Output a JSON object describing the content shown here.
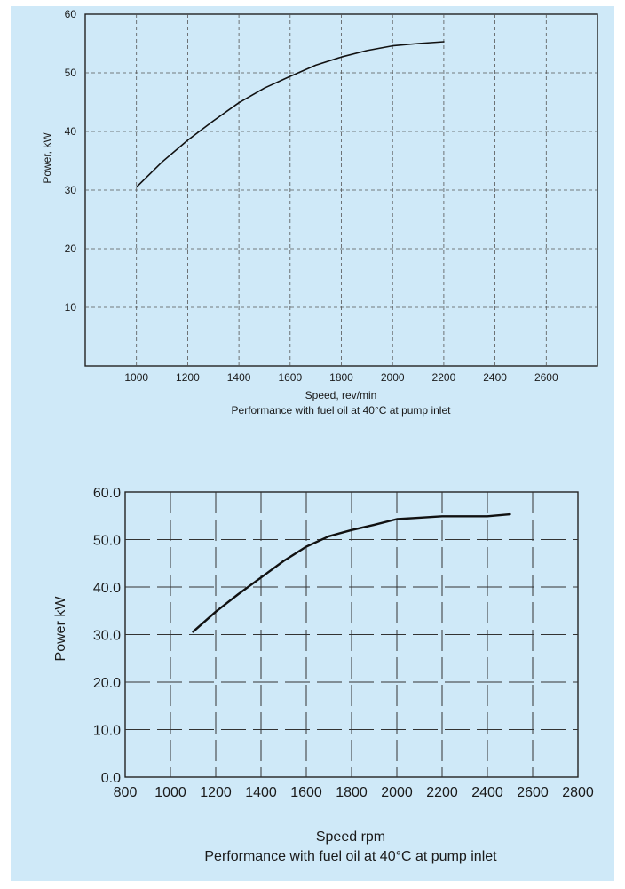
{
  "chart_data": [
    {
      "type": "line",
      "xlabel": "Speed, rev/min",
      "ylabel": "Power, kW",
      "caption": "Performance with fuel oil at 40°C at pump inlet",
      "xlim": [
        800,
        2800
      ],
      "ylim": [
        0,
        60
      ],
      "xticks": [
        "1000",
        "1200",
        "1400",
        "1600",
        "1800",
        "2000",
        "2200",
        "2400",
        "2600"
      ],
      "yticks": [
        "10",
        "20",
        "30",
        "40",
        "50",
        "60"
      ],
      "grid": true,
      "series": [
        {
          "x": [
            1000,
            1100,
            1200,
            1300,
            1400,
            1500,
            1600,
            1700,
            1800,
            1900,
            2000,
            2100,
            2200
          ],
          "y": [
            30.5,
            34.8,
            38.5,
            41.8,
            44.9,
            47.4,
            49.4,
            51.3,
            52.7,
            53.8,
            54.6,
            55.0,
            55.3
          ]
        }
      ],
      "colors": {
        "line": "#111111",
        "grid": "#555555",
        "axis": "#222222"
      }
    },
    {
      "type": "line",
      "xlabel": "Speed rpm",
      "ylabel": "Power kW",
      "caption": "Performance with fuel oil at 40°C at pump inlet",
      "xlim": [
        800,
        2800
      ],
      "ylim": [
        0,
        60
      ],
      "xticks": [
        "800",
        "1000",
        "1200",
        "1400",
        "1600",
        "1800",
        "2000",
        "2200",
        "2400",
        "2600",
        "2800"
      ],
      "yticks": [
        "0.0",
        "10.0",
        "20.0",
        "30.0",
        "40.0",
        "50.0",
        "60.0"
      ],
      "grid": true,
      "series": [
        {
          "x": [
            1100,
            1200,
            1300,
            1400,
            1500,
            1600,
            1700,
            1800,
            1900,
            2000,
            2100,
            2200,
            2300,
            2400,
            2500
          ],
          "y": [
            30.6,
            34.8,
            38.5,
            42.0,
            45.5,
            48.5,
            50.7,
            52.0,
            53.1,
            54.3,
            54.6,
            54.9,
            54.9,
            54.9,
            55.3
          ]
        }
      ],
      "colors": {
        "line": "#111111",
        "grid": "#333333",
        "axis": "#222222"
      }
    }
  ]
}
